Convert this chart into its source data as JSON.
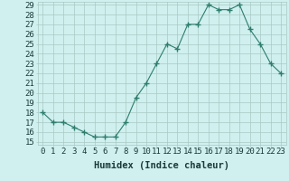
{
  "xlabel": "Humidex (Indice chaleur)",
  "x": [
    0,
    1,
    2,
    3,
    4,
    5,
    6,
    7,
    8,
    9,
    10,
    11,
    12,
    13,
    14,
    15,
    16,
    17,
    18,
    19,
    20,
    21,
    22,
    23
  ],
  "y": [
    18,
    17,
    17,
    16.5,
    16,
    15.5,
    15.5,
    15.5,
    17,
    19.5,
    21,
    23,
    25,
    24.5,
    27,
    27,
    29,
    28.5,
    28.5,
    29,
    26.5,
    25,
    23,
    22
  ],
  "line_color": "#2e7d6e",
  "marker": "+",
  "marker_size": 4,
  "bg_color": "#cff0ee",
  "grid_color": "#a8c8c4",
  "ylim_min": 15,
  "ylim_max": 29,
  "yticks": [
    15,
    16,
    17,
    18,
    19,
    20,
    21,
    22,
    23,
    24,
    25,
    26,
    27,
    28,
    29
  ],
  "tick_label_fontsize": 6.5,
  "xlabel_fontsize": 7.5,
  "label_color": "#1a3a3a"
}
